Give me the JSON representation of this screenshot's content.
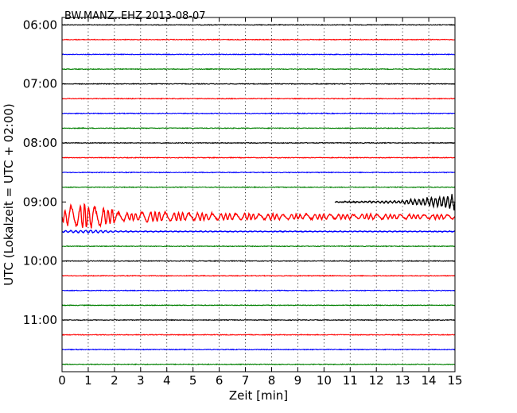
{
  "chart_data": {
    "type": "line",
    "title": "BW.MANZ..EHZ 2013-08-07",
    "xlabel": "Zeit  [min]",
    "ylabel": "UTC (Lokalzeit = UTC + 02:00)",
    "xlim": [
      0,
      15
    ],
    "ylim_time": [
      "05:52:30",
      "11:52:30"
    ],
    "x_ticks": [
      "0",
      "1",
      "2",
      "3",
      "4",
      "5",
      "6",
      "7",
      "8",
      "9",
      "10",
      "11",
      "12",
      "13",
      "14",
      "15"
    ],
    "y_ticks": [
      {
        "time": "06:00",
        "label": "06:00"
      },
      {
        "time": "07:00",
        "label": "07:00"
      },
      {
        "time": "08:00",
        "label": "08:00"
      },
      {
        "time": "09:00",
        "label": "09:00"
      },
      {
        "time": "10:00",
        "label": "10:00"
      },
      {
        "time": "11:00",
        "label": "11:00"
      }
    ],
    "grid": "vertical dotted at each minute",
    "trace_colors": [
      "#000000",
      "#ff0000",
      "#0000ff",
      "#008000"
    ],
    "traces": [
      {
        "start": "06:00",
        "color": "#000000",
        "activity": "noise"
      },
      {
        "start": "06:15",
        "color": "#ff0000",
        "activity": "noise"
      },
      {
        "start": "06:30",
        "color": "#0000ff",
        "activity": "noise"
      },
      {
        "start": "06:45",
        "color": "#008000",
        "activity": "noise"
      },
      {
        "start": "07:00",
        "color": "#000000",
        "activity": "noise"
      },
      {
        "start": "07:15",
        "color": "#ff0000",
        "activity": "noise"
      },
      {
        "start": "07:30",
        "color": "#0000ff",
        "activity": "noise"
      },
      {
        "start": "07:45",
        "color": "#008000",
        "activity": "noise"
      },
      {
        "start": "08:00",
        "color": "#000000",
        "activity": "noise"
      },
      {
        "start": "08:15",
        "color": "#ff0000",
        "activity": "noise"
      },
      {
        "start": "08:30",
        "color": "#0000ff",
        "activity": "noise"
      },
      {
        "start": "08:45",
        "color": "#008000",
        "activity": "noise"
      },
      {
        "start": "09:00",
        "color": "#000000",
        "activity": "event onset",
        "event_start_min": 10.4
      },
      {
        "start": "09:15",
        "color": "#ff0000",
        "activity": "event coda",
        "peak_min": 1.0
      },
      {
        "start": "09:30",
        "color": "#0000ff",
        "activity": "small event tail",
        "peak_min": 1.0
      },
      {
        "start": "09:45",
        "color": "#008000",
        "activity": "noise"
      },
      {
        "start": "10:00",
        "color": "#000000",
        "activity": "noise"
      },
      {
        "start": "10:15",
        "color": "#ff0000",
        "activity": "noise"
      },
      {
        "start": "10:30",
        "color": "#0000ff",
        "activity": "noise"
      },
      {
        "start": "10:45",
        "color": "#008000",
        "activity": "noise"
      },
      {
        "start": "11:00",
        "color": "#000000",
        "activity": "noise"
      },
      {
        "start": "11:15",
        "color": "#ff0000",
        "activity": "noise"
      },
      {
        "start": "11:30",
        "color": "#0000ff",
        "activity": "noise"
      },
      {
        "start": "11:45",
        "color": "#008000",
        "activity": "noise"
      }
    ]
  }
}
